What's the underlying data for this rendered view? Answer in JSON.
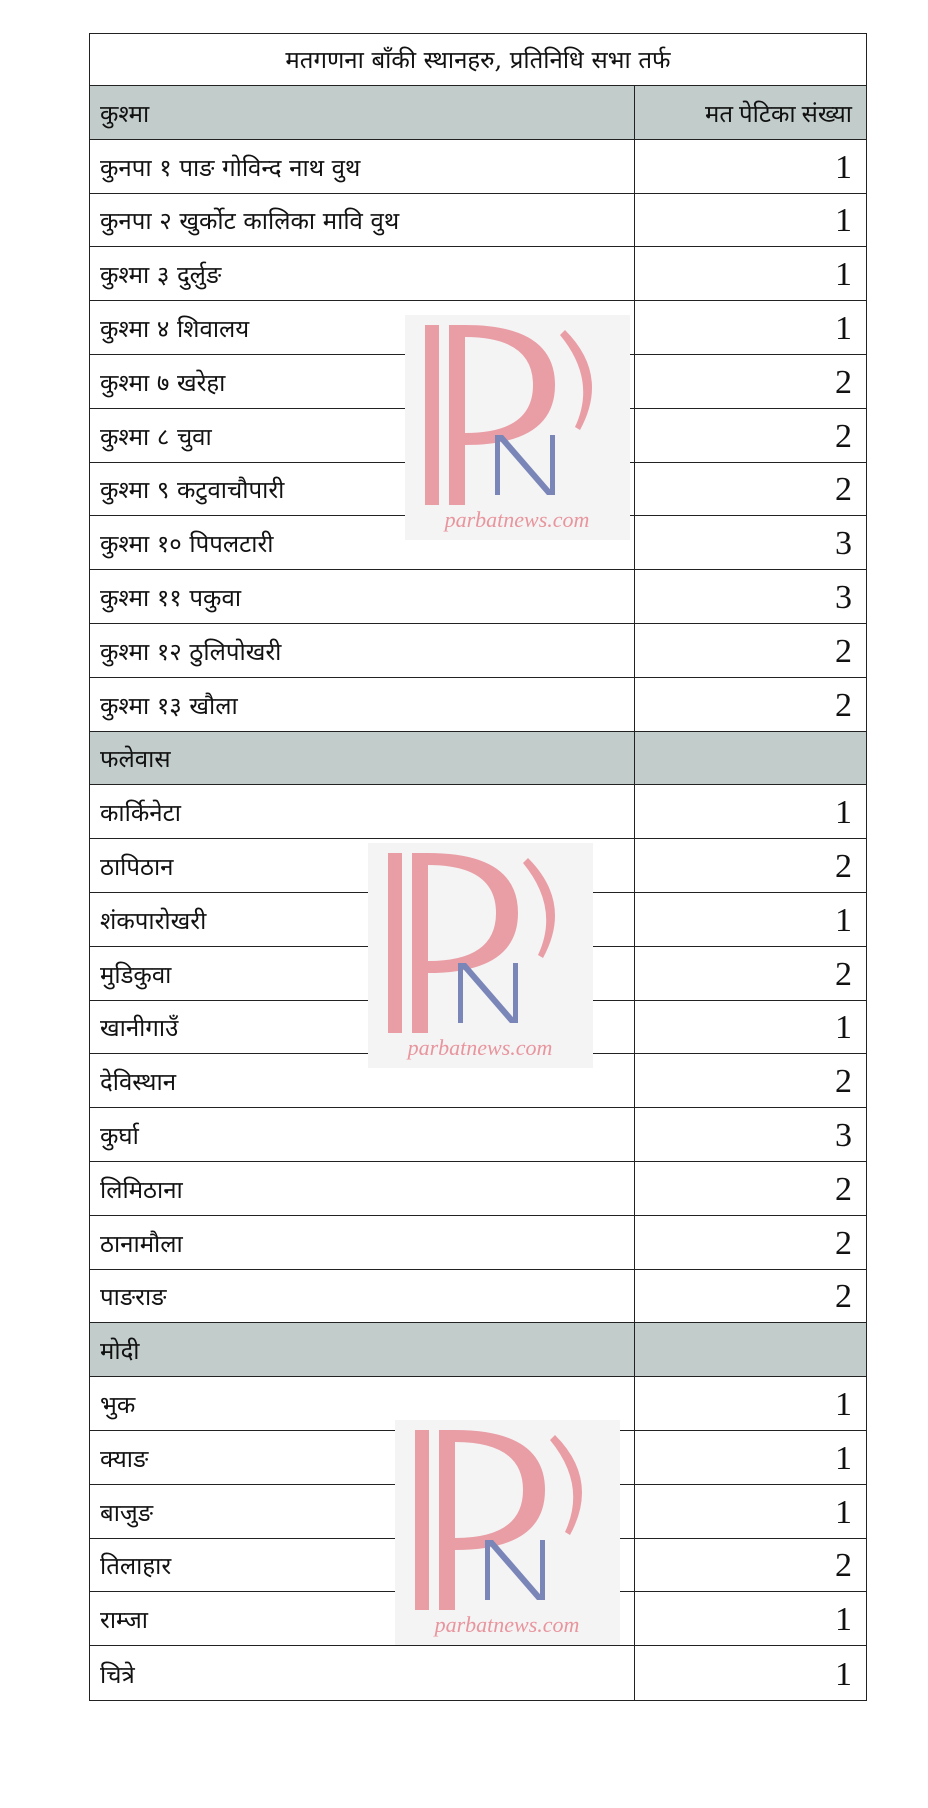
{
  "title": "मतगणना बाँकी स्थानहरु, प्रतिनिधि सभा तर्फ",
  "column_header": "मत पेटिका संख्या",
  "sections": [
    {
      "name": "कुश्मा",
      "rows": [
        {
          "place": "कुनपा १ पाङ गोविन्द नाथ वुथ",
          "boxes": "1"
        },
        {
          "place": "कुनपा २ खुर्कोट कालिका मावि वुथ",
          "boxes": "1"
        },
        {
          "place": "कुश्मा ३ दुर्लुङ",
          "boxes": "1"
        },
        {
          "place": "कुश्मा ४ शिवालय",
          "boxes": "1"
        },
        {
          "place": "कुश्मा ७ खरेहा",
          "boxes": "2"
        },
        {
          "place": "कुश्मा ८ चुवा",
          "boxes": "2"
        },
        {
          "place": "कुश्मा ९ कटुवाचौपारी",
          "boxes": "2"
        },
        {
          "place": "कुश्मा १० पिपलटारी",
          "boxes": "3"
        },
        {
          "place": "कुश्मा ११ पकुवा",
          "boxes": "3"
        },
        {
          "place": "कुश्मा १२ ठुलिपोखरी",
          "boxes": "2"
        },
        {
          "place": "कुश्मा १३ खौला",
          "boxes": "2"
        }
      ]
    },
    {
      "name": "फलेवास",
      "rows": [
        {
          "place": "कार्किनेटा",
          "boxes": "1"
        },
        {
          "place": "ठापिठान",
          "boxes": "2"
        },
        {
          "place": "शंकपारोखरी",
          "boxes": "1"
        },
        {
          "place": "मुडिकुवा",
          "boxes": "2"
        },
        {
          "place": "खानीगाउँ",
          "boxes": "1"
        },
        {
          "place": "देविस्थान",
          "boxes": "2"
        },
        {
          "place": "कुर्घा",
          "boxes": "3"
        },
        {
          "place": "लिमिठाना",
          "boxes": "2"
        },
        {
          "place": "ठानामौला",
          "boxes": "2"
        },
        {
          "place": "पाङराङ",
          "boxes": "2"
        }
      ]
    },
    {
      "name": "मोदी",
      "rows": [
        {
          "place": "भुक",
          "boxes": "1"
        },
        {
          "place": "क्याङ",
          "boxes": "1"
        },
        {
          "place": "बाजुङ",
          "boxes": "1"
        },
        {
          "place": "तिलाहार",
          "boxes": "2"
        },
        {
          "place": "राम्जा",
          "boxes": "1"
        },
        {
          "place": "चित्रे",
          "boxes": "1"
        }
      ]
    }
  ],
  "watermark": {
    "text": "parbatnews.com",
    "p_color": "#e8959e",
    "n_color": "#7b86b8"
  }
}
